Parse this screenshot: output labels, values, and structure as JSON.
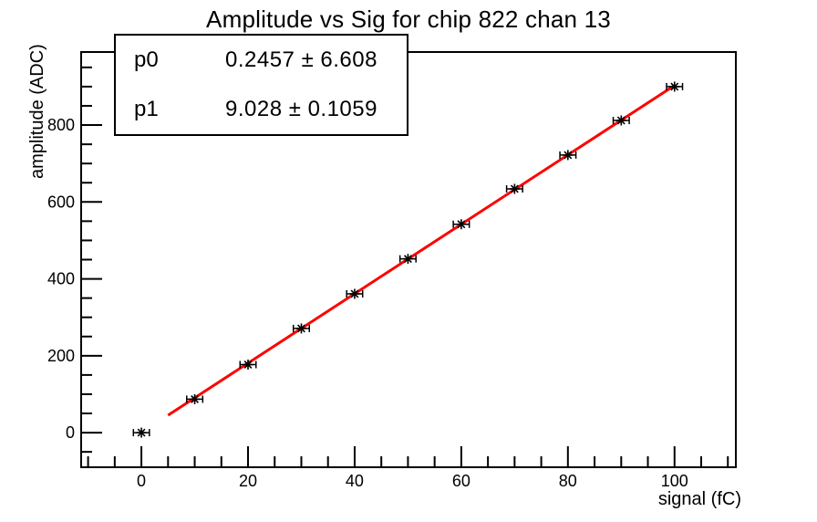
{
  "title": "Amplitude vs Sig for chip 822 chan 13",
  "stats_box": {
    "rows": [
      {
        "label": "p0",
        "value": "0.2457 ± 6.608"
      },
      {
        "label": "p1",
        "value": "9.028 ± 0.1059"
      }
    ]
  },
  "chart_data": {
    "type": "scatter",
    "title": "Amplitude vs Sig for chip 822 chan 13",
    "xlabel": "signal (fC)",
    "ylabel": "amplitude (ADC)",
    "xlim": [
      -11.3,
      111.5
    ],
    "ylim": [
      -90,
      990
    ],
    "x_major_ticks": [
      0,
      20,
      40,
      60,
      80,
      100
    ],
    "x_minor_step": 5,
    "y_major_ticks": [
      0,
      200,
      400,
      600,
      800
    ],
    "y_minor_step": 50,
    "grid": false,
    "legend": "none",
    "points": {
      "x": [
        0,
        10,
        20,
        30,
        40,
        50,
        60,
        70,
        80,
        90,
        100
      ],
      "y": [
        0,
        87,
        177,
        271,
        361,
        452,
        542,
        634,
        722,
        812,
        900
      ],
      "xerr": 1.5,
      "marker": "asterisk",
      "color": "#000000"
    },
    "fit": {
      "type": "linear",
      "p0": 0.2457,
      "p0_err": 6.608,
      "p1": 9.028,
      "p1_err": 0.1059,
      "x_range": [
        5,
        100
      ],
      "color": "#ff0000"
    },
    "frame_color": "#000000",
    "background_color": "#ffffff"
  }
}
